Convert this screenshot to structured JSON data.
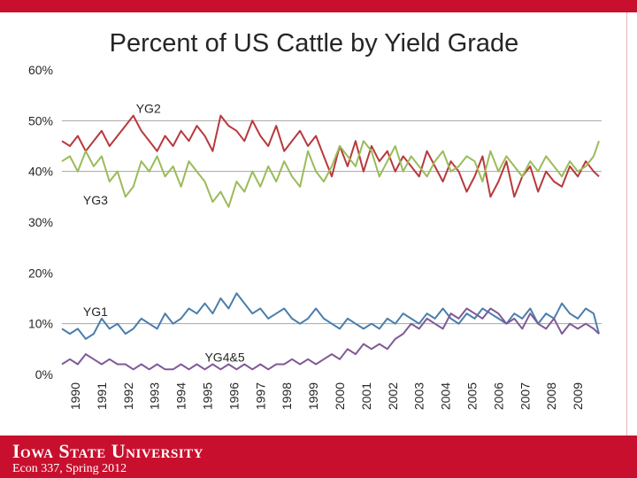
{
  "colors": {
    "brand_red": "#c8102e",
    "yg1": "#4a7eac",
    "yg2": "#b8393c",
    "yg3": "#9bbb59",
    "yg45": "#7f5a97",
    "grid": "#a6a6a6"
  },
  "footer": {
    "university": "Iowa State University",
    "course": "Econ 337, Spring 2012"
  },
  "chart_data": {
    "type": "line",
    "title": "Percent of US Cattle by Yield Grade",
    "xlabel": "",
    "ylabel": "",
    "ylim": [
      0,
      60
    ],
    "y_ticks": [
      "0%",
      "10%",
      "20%",
      "30%",
      "40%",
      "50%",
      "60%"
    ],
    "x_ticks": [
      "1990",
      "1991",
      "1992",
      "1993",
      "1994",
      "1995",
      "1996",
      "1997",
      "1998",
      "1999",
      "2000",
      "2001",
      "2002",
      "2003",
      "2004",
      "2005",
      "2006",
      "2007",
      "2008",
      "2009"
    ],
    "x_range": [
      1990,
      2010.4
    ],
    "grid": "horizontal at 10%, 40%, 50%",
    "annotations": [
      {
        "text": "YG2",
        "x": 1992.8,
        "y": 51.5
      },
      {
        "text": "YG3",
        "x": 1990.8,
        "y": 33.5
      },
      {
        "text": "YG1",
        "x": 1990.8,
        "y": 11.5
      },
      {
        "text": "YG4&5",
        "x": 1995.4,
        "y": 2.5
      }
    ],
    "series": [
      {
        "name": "YG2",
        "x": [
          1990.0,
          1990.3,
          1990.6,
          1990.9,
          1991.2,
          1991.5,
          1991.8,
          1992.1,
          1992.4,
          1992.7,
          1993.0,
          1993.3,
          1993.6,
          1993.9,
          1994.2,
          1994.5,
          1994.8,
          1995.1,
          1995.4,
          1995.7,
          1996.0,
          1996.3,
          1996.6,
          1996.9,
          1997.2,
          1997.5,
          1997.8,
          1998.1,
          1998.4,
          1998.7,
          1999.0,
          1999.3,
          1999.6,
          1999.9,
          2000.2,
          2000.5,
          2000.8,
          2001.1,
          2001.4,
          2001.7,
          2002.0,
          2002.3,
          2002.6,
          2002.9,
          2003.2,
          2003.5,
          2003.8,
          2004.1,
          2004.4,
          2004.7,
          2005.0,
          2005.3,
          2005.6,
          2005.9,
          2006.2,
          2006.5,
          2006.8,
          2007.1,
          2007.4,
          2007.7,
          2008.0,
          2008.3,
          2008.6,
          2008.9,
          2009.2,
          2009.5,
          2009.8,
          2010.1,
          2010.3
        ],
        "values": [
          46,
          45,
          47,
          44,
          46,
          48,
          45,
          47,
          49,
          51,
          48,
          46,
          44,
          47,
          45,
          48,
          46,
          49,
          47,
          44,
          51,
          49,
          48,
          46,
          50,
          47,
          45,
          49,
          44,
          46,
          48,
          45,
          47,
          43,
          39,
          45,
          41,
          46,
          40,
          45,
          42,
          44,
          40,
          43,
          41,
          39,
          44,
          41,
          38,
          42,
          40,
          36,
          39,
          43,
          35,
          38,
          42,
          35,
          39,
          41,
          36,
          40,
          38,
          37,
          41,
          39,
          42,
          40,
          39
        ]
      },
      {
        "name": "YG3",
        "x": [
          1990.0,
          1990.3,
          1990.6,
          1990.9,
          1991.2,
          1991.5,
          1991.8,
          1992.1,
          1992.4,
          1992.7,
          1993.0,
          1993.3,
          1993.6,
          1993.9,
          1994.2,
          1994.5,
          1994.8,
          1995.1,
          1995.4,
          1995.7,
          1996.0,
          1996.3,
          1996.6,
          1996.9,
          1997.2,
          1997.5,
          1997.8,
          1998.1,
          1998.4,
          1998.7,
          1999.0,
          1999.3,
          1999.6,
          1999.9,
          2000.2,
          2000.5,
          2000.8,
          2001.1,
          2001.4,
          2001.7,
          2002.0,
          2002.3,
          2002.6,
          2002.9,
          2003.2,
          2003.5,
          2003.8,
          2004.1,
          2004.4,
          2004.7,
          2005.0,
          2005.3,
          2005.6,
          2005.9,
          2006.2,
          2006.5,
          2006.8,
          2007.1,
          2007.4,
          2007.7,
          2008.0,
          2008.3,
          2008.6,
          2008.9,
          2009.2,
          2009.5,
          2009.8,
          2010.1,
          2010.3
        ],
        "values": [
          42,
          43,
          40,
          44,
          41,
          43,
          38,
          40,
          35,
          37,
          42,
          40,
          43,
          39,
          41,
          37,
          42,
          40,
          38,
          34,
          36,
          33,
          38,
          36,
          40,
          37,
          41,
          38,
          42,
          39,
          37,
          44,
          40,
          38,
          41,
          45,
          43,
          41,
          46,
          44,
          39,
          42,
          45,
          40,
          43,
          41,
          39,
          42,
          44,
          40,
          41,
          43,
          42,
          38,
          44,
          40,
          43,
          41,
          39,
          42,
          40,
          43,
          41,
          39,
          42,
          40,
          41,
          43,
          46
        ]
      },
      {
        "name": "YG1",
        "x": [
          1990.0,
          1990.3,
          1990.6,
          1990.9,
          1991.2,
          1991.5,
          1991.8,
          1992.1,
          1992.4,
          1992.7,
          1993.0,
          1993.3,
          1993.6,
          1993.9,
          1994.2,
          1994.5,
          1994.8,
          1995.1,
          1995.4,
          1995.7,
          1996.0,
          1996.3,
          1996.6,
          1996.9,
          1997.2,
          1997.5,
          1997.8,
          1998.1,
          1998.4,
          1998.7,
          1999.0,
          1999.3,
          1999.6,
          1999.9,
          2000.2,
          2000.5,
          2000.8,
          2001.1,
          2001.4,
          2001.7,
          2002.0,
          2002.3,
          2002.6,
          2002.9,
          2003.2,
          2003.5,
          2003.8,
          2004.1,
          2004.4,
          2004.7,
          2005.0,
          2005.3,
          2005.6,
          2005.9,
          2006.2,
          2006.5,
          2006.8,
          2007.1,
          2007.4,
          2007.7,
          2008.0,
          2008.3,
          2008.6,
          2008.9,
          2009.2,
          2009.5,
          2009.8,
          2010.1,
          2010.3
        ],
        "values": [
          9,
          8,
          9,
          7,
          8,
          11,
          9,
          10,
          8,
          9,
          11,
          10,
          9,
          12,
          10,
          11,
          13,
          12,
          14,
          12,
          15,
          13,
          16,
          14,
          12,
          13,
          11,
          12,
          13,
          11,
          10,
          11,
          13,
          11,
          10,
          9,
          11,
          10,
          9,
          10,
          9,
          11,
          10,
          12,
          11,
          10,
          12,
          11,
          13,
          11,
          10,
          12,
          11,
          13,
          12,
          11,
          10,
          12,
          11,
          13,
          10,
          12,
          11,
          14,
          12,
          11,
          13,
          12,
          8
        ]
      },
      {
        "name": "YG4&5",
        "x": [
          1990.0,
          1990.3,
          1990.6,
          1990.9,
          1991.2,
          1991.5,
          1991.8,
          1992.1,
          1992.4,
          1992.7,
          1993.0,
          1993.3,
          1993.6,
          1993.9,
          1994.2,
          1994.5,
          1994.8,
          1995.1,
          1995.4,
          1995.7,
          1996.0,
          1996.3,
          1996.6,
          1996.9,
          1997.2,
          1997.5,
          1997.8,
          1998.1,
          1998.4,
          1998.7,
          1999.0,
          1999.3,
          1999.6,
          1999.9,
          2000.2,
          2000.5,
          2000.8,
          2001.1,
          2001.4,
          2001.7,
          2002.0,
          2002.3,
          2002.6,
          2002.9,
          2003.2,
          2003.5,
          2003.8,
          2004.1,
          2004.4,
          2004.7,
          2005.0,
          2005.3,
          2005.6,
          2005.9,
          2006.2,
          2006.5,
          2006.8,
          2007.1,
          2007.4,
          2007.7,
          2008.0,
          2008.3,
          2008.6,
          2008.9,
          2009.2,
          2009.5,
          2009.8,
          2010.1,
          2010.3
        ],
        "values": [
          2,
          3,
          2,
          4,
          3,
          2,
          3,
          2,
          2,
          1,
          2,
          1,
          2,
          1,
          1,
          2,
          1,
          2,
          1,
          2,
          1,
          2,
          1,
          2,
          1,
          2,
          1,
          2,
          2,
          3,
          2,
          3,
          2,
          3,
          4,
          3,
          5,
          4,
          6,
          5,
          6,
          5,
          7,
          8,
          10,
          9,
          11,
          10,
          9,
          12,
          11,
          13,
          12,
          11,
          13,
          12,
          10,
          11,
          9,
          12,
          10,
          9,
          11,
          8,
          10,
          9,
          10,
          9,
          8
        ]
      }
    ]
  }
}
